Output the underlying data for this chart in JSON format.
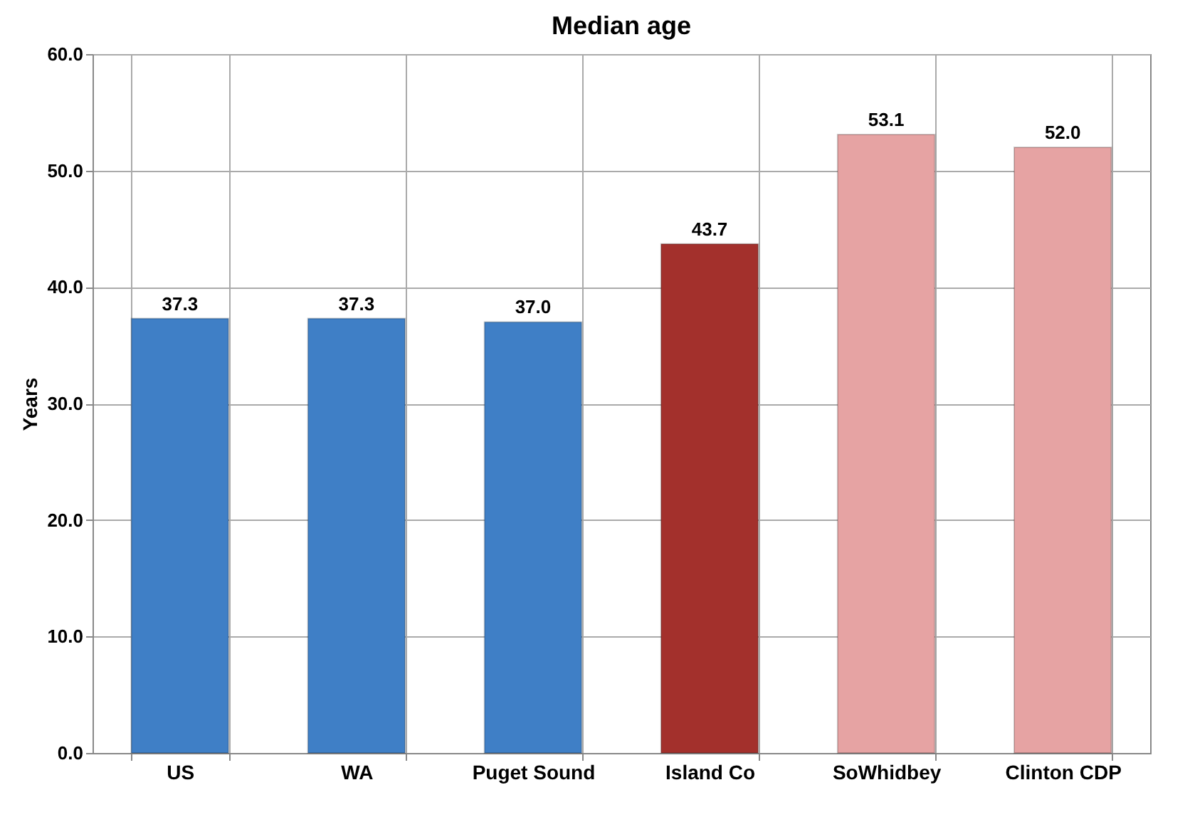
{
  "chart_data": {
    "type": "bar",
    "title": "Median age",
    "ylabel": "Years",
    "categories": [
      "US",
      "WA",
      "Puget Sound",
      "Island Co",
      "SoWhidbey",
      "Clinton CDP"
    ],
    "values": [
      37.3,
      37.3,
      37.0,
      43.7,
      53.1,
      52.0
    ],
    "colors": [
      "#3f7fc6",
      "#3f7fc6",
      "#3f7fc6",
      "#a3302c",
      "#e6a3a3",
      "#e6a3a3"
    ],
    "value_labels": [
      "37.3",
      "37.3",
      "37.0",
      "43.7",
      "53.1",
      "52.0"
    ],
    "ylim": [
      0,
      60
    ],
    "yticks": [
      {
        "value": 0,
        "label": "0.0"
      },
      {
        "value": 10,
        "label": "10.0"
      },
      {
        "value": 20,
        "label": "20.0"
      },
      {
        "value": 30,
        "label": "30.0"
      },
      {
        "value": 40,
        "label": "40.0"
      },
      {
        "value": 50,
        "label": "50.0"
      },
      {
        "value": 60,
        "label": "60.0"
      }
    ],
    "grid": true
  }
}
